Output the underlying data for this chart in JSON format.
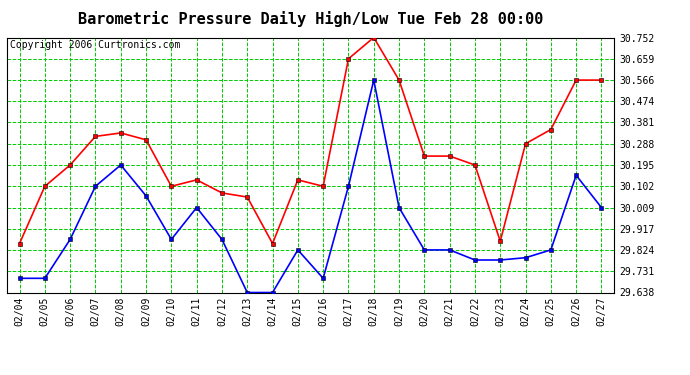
{
  "title": "Barometric Pressure Daily High/Low Tue Feb 28 00:00",
  "copyright": "Copyright 2006 Curtronics.com",
  "x_labels": [
    "02/04",
    "02/05",
    "02/06",
    "02/07",
    "02/08",
    "02/09",
    "02/10",
    "02/11",
    "02/12",
    "02/13",
    "02/14",
    "02/15",
    "02/16",
    "02/17",
    "02/18",
    "02/19",
    "02/20",
    "02/21",
    "02/22",
    "02/23",
    "02/24",
    "02/25",
    "02/26",
    "02/27"
  ],
  "high_values": [
    29.852,
    30.102,
    30.195,
    30.32,
    30.335,
    30.305,
    30.102,
    30.13,
    30.073,
    30.055,
    29.852,
    30.13,
    30.102,
    30.659,
    30.752,
    30.566,
    30.234,
    30.234,
    30.195,
    29.862,
    30.288,
    30.35,
    30.566,
    30.566
  ],
  "low_values": [
    29.7,
    29.7,
    29.87,
    30.102,
    30.195,
    30.06,
    29.87,
    30.009,
    29.87,
    29.638,
    29.638,
    29.824,
    29.7,
    30.102,
    30.566,
    30.009,
    29.824,
    29.824,
    29.78,
    29.78,
    29.79,
    29.824,
    30.15,
    30.009
  ],
  "y_ticks": [
    29.638,
    29.731,
    29.824,
    29.917,
    30.009,
    30.102,
    30.195,
    30.288,
    30.381,
    30.474,
    30.566,
    30.659,
    30.752
  ],
  "ylim_min": 29.638,
  "ylim_max": 30.752,
  "high_color": "#ff0000",
  "low_color": "#0000ff",
  "bg_color": "#ffffff",
  "plot_bg_color": "#ffffff",
  "grid_color": "#00cc00",
  "title_fontsize": 11,
  "copyright_fontsize": 7,
  "tick_fontsize": 7,
  "ytick_fontsize": 7
}
